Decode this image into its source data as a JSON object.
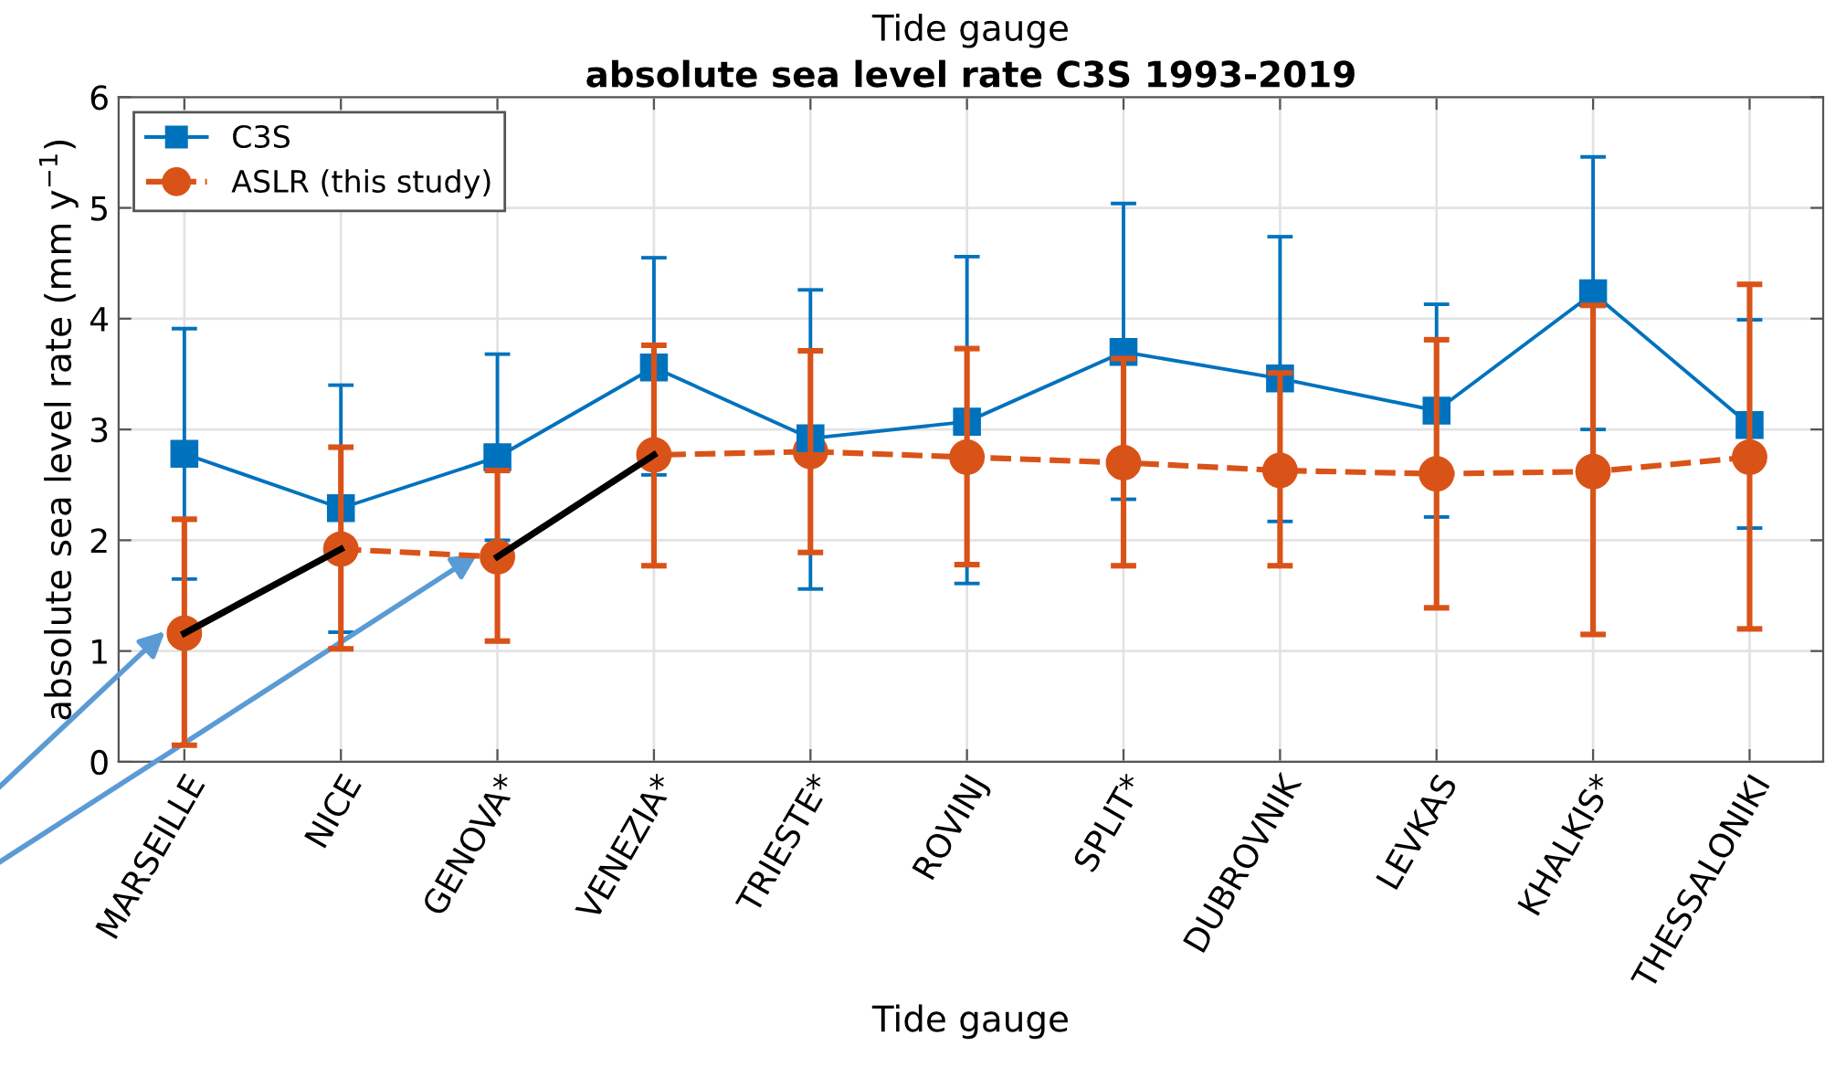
{
  "chart_data": {
    "type": "line",
    "subtitle": "Tide gauge",
    "title": "absolute sea level rate C3S 1993-2019",
    "xlabel": "Tide gauge",
    "ylabel": "absolute sea level rate (mm y$^{−1}$)",
    "categories": [
      "MARSEILLE",
      "NICE",
      "GENOVA*",
      "VENEZIA*",
      "TRIESTE*",
      "ROVINJ",
      "SPLIT*",
      "DUBROVNIK",
      "LEVKAS",
      "KHALKIS*",
      "THESSALONIKI"
    ],
    "series": [
      {
        "name": "C3S",
        "color": "#0072bd",
        "marker": "square",
        "line_style": "solid",
        "values": [
          2.78,
          2.29,
          2.75,
          3.56,
          2.92,
          3.07,
          3.7,
          3.46,
          3.17,
          4.23,
          3.04
        ],
        "errors": [
          [
            1.65,
            3.91
          ],
          [
            1.17,
            3.4
          ],
          [
            2.0,
            3.68
          ],
          [
            2.59,
            4.55
          ],
          [
            1.56,
            4.26
          ],
          [
            1.61,
            4.56
          ],
          [
            2.37,
            5.04
          ],
          [
            2.17,
            4.74
          ],
          [
            2.21,
            4.13
          ],
          [
            3.0,
            5.46
          ],
          [
            2.11,
            3.99
          ]
        ]
      },
      {
        "name": "ASLR (this study)",
        "color": "#d95319",
        "marker": "circle",
        "line_style": "dashed",
        "values": [
          1.16,
          1.92,
          1.85,
          2.77,
          2.8,
          2.75,
          2.7,
          2.63,
          2.6,
          2.62,
          2.75
        ],
        "errors": [
          [
            0.15,
            2.19
          ],
          [
            1.02,
            2.84
          ],
          [
            1.09,
            2.63
          ],
          [
            1.77,
            3.76
          ],
          [
            1.89,
            3.71
          ],
          [
            1.78,
            3.73
          ],
          [
            1.77,
            3.64
          ],
          [
            1.77,
            3.51
          ],
          [
            1.39,
            3.81
          ],
          [
            1.15,
            4.12
          ],
          [
            1.2,
            4.31
          ]
        ]
      },
      {
        "color": "#000000",
        "marker": "none",
        "line_style": "solid",
        "values": [
          1.16,
          1.92,
          null,
          null,
          null,
          null,
          null,
          null,
          null,
          null,
          null
        ]
      },
      {
        "color": "#000000",
        "marker": "none",
        "line_style": "solid",
        "values": [
          null,
          null,
          1.85,
          2.77,
          null,
          null,
          null,
          null,
          null,
          null,
          null
        ]
      }
    ],
    "ylim": [
      0,
      6
    ],
    "yticks": [
      0,
      1,
      2,
      3,
      4,
      5,
      6
    ],
    "grid": true,
    "legend": "top left"
  }
}
